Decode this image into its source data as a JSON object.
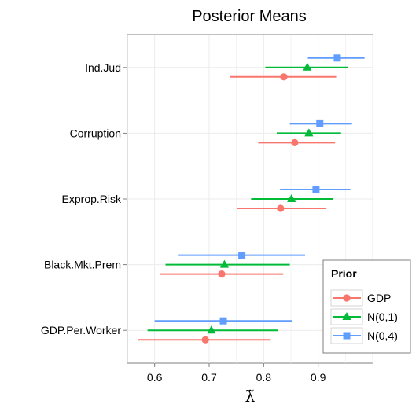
{
  "chart_data": {
    "type": "scatter",
    "title": "Posterior Means",
    "xlabel": "λ̃",
    "ylabel": "",
    "xlim": [
      0.55,
      1.0
    ],
    "xticks": [
      0.6,
      0.7,
      0.8,
      0.9
    ],
    "xtick_labels": [
      "0.6",
      "0.7",
      "0.8",
      "0.9"
    ],
    "categories": [
      "Ind.Jud",
      "Corruption",
      "Exprop.Risk",
      "Black.Mkt.Prem",
      "GDP.Per.Worker"
    ],
    "grid": true,
    "legend": {
      "title": "Prior",
      "position": "right"
    },
    "series": [
      {
        "name": "GDP",
        "color": "#F8766D",
        "marker": "circle",
        "values": [
          0.837,
          0.857,
          0.831,
          0.723,
          0.693
        ],
        "lower": [
          0.738,
          0.79,
          0.752,
          0.61,
          0.57
        ],
        "upper": [
          0.933,
          0.931,
          0.915,
          0.836,
          0.813
        ]
      },
      {
        "name": "N(0,1)",
        "color": "#00BA38",
        "marker": "triangle",
        "values": [
          0.88,
          0.883,
          0.851,
          0.728,
          0.704
        ],
        "lower": [
          0.803,
          0.824,
          0.777,
          0.62,
          0.587
        ],
        "upper": [
          0.955,
          0.942,
          0.928,
          0.848,
          0.827
        ]
      },
      {
        "name": "N(0,4)",
        "color": "#619CFF",
        "marker": "square",
        "values": [
          0.935,
          0.903,
          0.896,
          0.76,
          0.726
        ],
        "lower": [
          0.881,
          0.848,
          0.83,
          0.644,
          0.6
        ],
        "upper": [
          0.985,
          0.962,
          0.959,
          0.876,
          0.852
        ]
      }
    ]
  }
}
